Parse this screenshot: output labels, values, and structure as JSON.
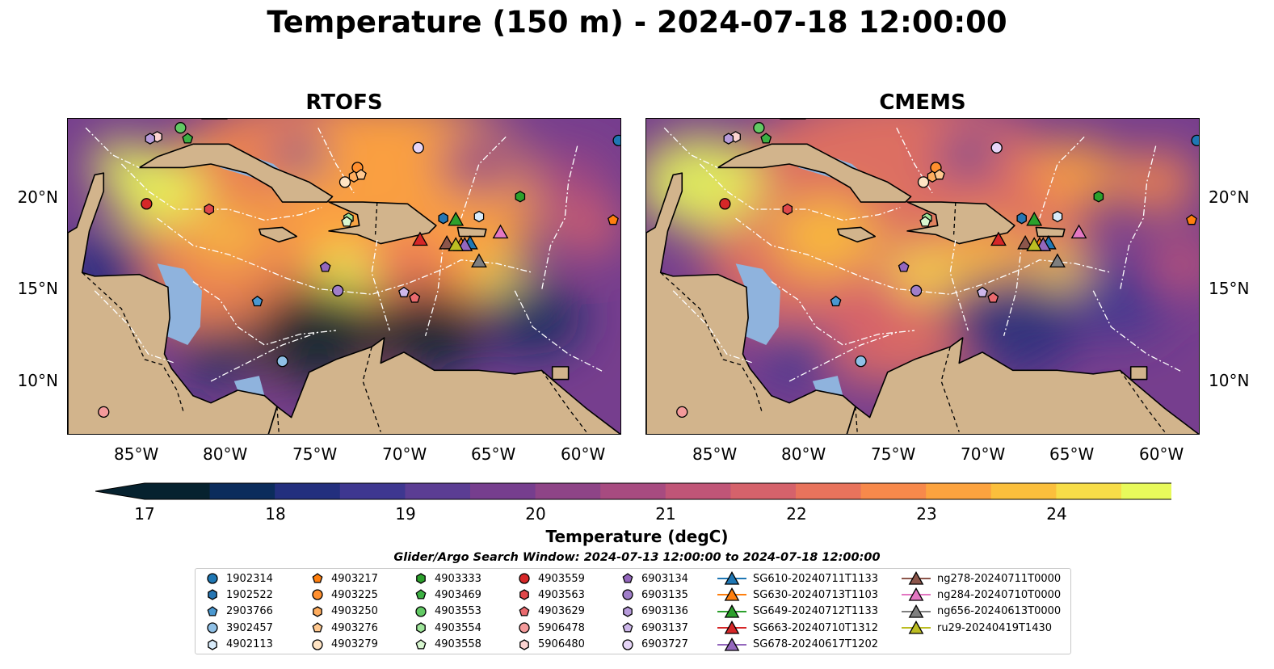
{
  "title": "Temperature (150 m) - 2024-07-18 12:00:00",
  "panels": [
    {
      "title": "RTOFS"
    },
    {
      "title": "CMEMS"
    }
  ],
  "lon_ticks": [
    "85°W",
    "80°W",
    "75°W",
    "70°W",
    "65°W",
    "60°W"
  ],
  "lat_ticks": [
    "20°N",
    "15°N",
    "10°N"
  ],
  "colorbar": {
    "label": "Temperature (degC)",
    "ticks": [
      "17",
      "18",
      "19",
      "20",
      "21",
      "22",
      "23",
      "24"
    ],
    "range": [
      17,
      24.5
    ],
    "colors": [
      "#06222f",
      "#0b2c5c",
      "#232f7e",
      "#3e3790",
      "#5b3d93",
      "#763e8e",
      "#8e4487",
      "#a74b80",
      "#c05577",
      "#d5626b",
      "#e8735c",
      "#f7894b",
      "#fca33f",
      "#fbbf3c",
      "#f7dd48",
      "#e8fa5b"
    ]
  },
  "search_window": "Glider/Argo Search Window: 2024-07-13 12:00:00 to 2024-07-18 12:00:00",
  "legend": [
    [
      {
        "label": "1902314",
        "marker": "circle",
        "color": "#1f77b4"
      },
      {
        "label": "1902522",
        "marker": "hexagon",
        "color": "#2676b3"
      },
      {
        "label": "2903766",
        "marker": "pentagon",
        "color": "#4a98d0"
      },
      {
        "label": "3902457",
        "marker": "circle",
        "color": "#8fc0e6"
      },
      {
        "label": "4902113",
        "marker": "hexagon",
        "color": "#d8ebfa"
      }
    ],
    [
      {
        "label": "4903217",
        "marker": "pentagon",
        "color": "#ff7f0e"
      },
      {
        "label": "4903225",
        "marker": "circle",
        "color": "#ff8f2e"
      },
      {
        "label": "4903250",
        "marker": "hexagon",
        "color": "#ffad5e"
      },
      {
        "label": "4903276",
        "marker": "pentagon",
        "color": "#ffc88f"
      },
      {
        "label": "4903279",
        "marker": "circle",
        "color": "#ffe4c4"
      }
    ],
    [
      {
        "label": "4903333",
        "marker": "hexagon",
        "color": "#2ca02c"
      },
      {
        "label": "4903469",
        "marker": "pentagon",
        "color": "#3cb043"
      },
      {
        "label": "4903553",
        "marker": "circle",
        "color": "#62c964"
      },
      {
        "label": "4903554",
        "marker": "hexagon",
        "color": "#9ee59a"
      },
      {
        "label": "4903558",
        "marker": "pentagon",
        "color": "#d8f7d0"
      }
    ],
    [
      {
        "label": "4903559",
        "marker": "circle",
        "color": "#d62728"
      },
      {
        "label": "4903563",
        "marker": "hexagon",
        "color": "#e0474a"
      },
      {
        "label": "4903629",
        "marker": "pentagon",
        "color": "#ea6a6e"
      },
      {
        "label": "5906478",
        "marker": "circle",
        "color": "#f49a9b"
      },
      {
        "label": "5906480",
        "marker": "hexagon",
        "color": "#fcd3d1"
      }
    ],
    [
      {
        "label": "6903134",
        "marker": "pentagon",
        "color": "#9467bd"
      },
      {
        "label": "6903135",
        "marker": "circle",
        "color": "#a07ec9"
      },
      {
        "label": "6903136",
        "marker": "hexagon",
        "color": "#b79bdb"
      },
      {
        "label": "6903137",
        "marker": "pentagon",
        "color": "#cdb7ea"
      },
      {
        "label": "6903727",
        "marker": "circle",
        "color": "#e6d5f7"
      }
    ],
    [
      {
        "label": "SG610-20240711T1133",
        "marker": "triangle",
        "color": "#1f77b4"
      },
      {
        "label": "SG630-20240713T1103",
        "marker": "triangle",
        "color": "#ff7f0e"
      },
      {
        "label": "SG649-20240712T1133",
        "marker": "triangle",
        "color": "#2ca02c"
      },
      {
        "label": "SG663-20240710T1312",
        "marker": "triangle",
        "color": "#d62728"
      },
      {
        "label": "SG678-20240617T1202",
        "marker": "triangle",
        "color": "#9467bd"
      }
    ],
    [
      {
        "label": "ng278-20240711T0000",
        "marker": "triangle",
        "color": "#8c564b"
      },
      {
        "label": "ng284-20240710T0000",
        "marker": "triangle",
        "color": "#e377c2"
      },
      {
        "label": "ng656-20240613T0000",
        "marker": "triangle",
        "color": "#7f7f7f"
      },
      {
        "label": "ru29-20240419T1430",
        "marker": "triangle",
        "color": "#bcbd22"
      }
    ]
  ],
  "map_view": {
    "lon_range": [
      -89,
      -58
    ],
    "lat_range": [
      7,
      24.5
    ]
  },
  "observations": [
    {
      "label": "1902314",
      "lon": -58.2,
      "lat": 23.3
    },
    {
      "label": "1902522",
      "lon": -68.0,
      "lat": 19.0
    },
    {
      "label": "2903766",
      "lon": -78.4,
      "lat": 14.4
    },
    {
      "label": "3902457",
      "lon": -77.0,
      "lat": 11.1
    },
    {
      "label": "4902113",
      "lon": -66.0,
      "lat": 19.1
    },
    {
      "label": "4903217",
      "lon": -58.5,
      "lat": 18.9
    },
    {
      "label": "4903225",
      "lon": -72.8,
      "lat": 21.8
    },
    {
      "label": "4903250",
      "lon": -73.0,
      "lat": 21.3
    },
    {
      "label": "4903276",
      "lon": -72.6,
      "lat": 21.4
    },
    {
      "label": "4903279",
      "lon": -73.5,
      "lat": 21.0
    },
    {
      "label": "4903333",
      "lon": -63.7,
      "lat": 20.2
    },
    {
      "label": "4903469",
      "lon": -82.3,
      "lat": 23.4
    },
    {
      "label": "4903553",
      "lon": -82.7,
      "lat": 24.0
    },
    {
      "label": "4903554",
      "lon": -73.3,
      "lat": 19.0
    },
    {
      "label": "4903558",
      "lon": -73.4,
      "lat": 18.8
    },
    {
      "label": "4903559",
      "lon": -84.6,
      "lat": 19.8
    },
    {
      "label": "4903563",
      "lon": -81.1,
      "lat": 19.5
    },
    {
      "label": "4903629",
      "lon": -69.6,
      "lat": 14.6
    },
    {
      "label": "5906478",
      "lon": -87.0,
      "lat": 8.3
    },
    {
      "label": "5906480",
      "lon": -84.0,
      "lat": 23.5
    },
    {
      "label": "6903134",
      "lon": -74.6,
      "lat": 16.3
    },
    {
      "label": "6903135",
      "lon": -73.9,
      "lat": 15.0
    },
    {
      "label": "6903136",
      "lon": -84.4,
      "lat": 23.4
    },
    {
      "label": "6903137",
      "lon": -70.2,
      "lat": 14.9
    },
    {
      "label": "6903727",
      "lon": -69.4,
      "lat": 22.9
    },
    {
      "label": "SG610-20240711T1133",
      "lon": -66.5,
      "lat": 17.6
    },
    {
      "label": "SG630-20240713T1103",
      "lon": -67.0,
      "lat": 17.5
    },
    {
      "label": "SG649-20240712T1133",
      "lon": -67.3,
      "lat": 18.9
    },
    {
      "label": "SG663-20240710T1312",
      "lon": -69.3,
      "lat": 17.8
    },
    {
      "label": "SG678-20240617T1202",
      "lon": -66.8,
      "lat": 17.5
    },
    {
      "label": "ng278-20240711T0000",
      "lon": -67.8,
      "lat": 17.6
    },
    {
      "label": "ng284-20240710T0000",
      "lon": -64.8,
      "lat": 18.2
    },
    {
      "label": "ng656-20240613T0000",
      "lon": -66.0,
      "lat": 16.6
    },
    {
      "label": "ru29-20240419T1430",
      "lon": -67.3,
      "lat": 17.5
    }
  ],
  "colors": {
    "land": "#d2b48c",
    "shallow_water": "#8fb3dd",
    "coastline": "#000000",
    "eez_lines": "#ffffff"
  }
}
